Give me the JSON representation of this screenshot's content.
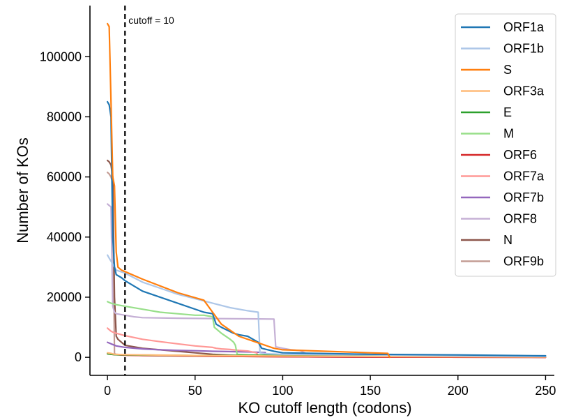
{
  "chart_data": {
    "type": "line",
    "title": "",
    "xlabel": "KO cutoff length (codons)",
    "ylabel": "Number of KOs",
    "xlim": [
      -10,
      255
    ],
    "ylim": [
      -6000,
      117000
    ],
    "xticks": [
      0,
      50,
      100,
      150,
      200,
      250
    ],
    "yticks": [
      0,
      20000,
      40000,
      60000,
      80000,
      100000
    ],
    "grid": false,
    "legend": "top-right",
    "cutoff": {
      "x": 10,
      "label": "cutoff = 10",
      "color": "#000000"
    },
    "series": [
      {
        "name": "ORF1a",
        "color": "#1f77b4",
        "x": [
          0,
          1,
          2,
          3,
          4,
          5,
          8,
          10,
          20,
          40,
          55,
          60,
          62,
          65,
          72,
          75,
          80,
          86,
          88,
          95,
          100,
          150,
          200,
          250
        ],
        "y": [
          85000,
          84000,
          80000,
          40000,
          30000,
          27500,
          26500,
          25500,
          22000,
          18000,
          15000,
          14500,
          11000,
          10000,
          8000,
          7500,
          7000,
          5000,
          3000,
          2000,
          1500,
          1000,
          800,
          500
        ]
      },
      {
        "name": "ORF1b",
        "color": "#aec7e8",
        "x": [
          0,
          1,
          2,
          3,
          4,
          5,
          10,
          20,
          30,
          40,
          50,
          60,
          70,
          80,
          86,
          87,
          90,
          100,
          150,
          200,
          250
        ],
        "y": [
          34000,
          33000,
          32000,
          31000,
          30000,
          29000,
          28000,
          25000,
          23000,
          21000,
          19500,
          18000,
          16500,
          15500,
          15000,
          1500,
          1200,
          1000,
          800,
          500,
          300
        ]
      },
      {
        "name": "S",
        "color": "#ff7f0e",
        "x": [
          0,
          1,
          2,
          3,
          4,
          5,
          6,
          8,
          10,
          20,
          40,
          55,
          60,
          65,
          75,
          85,
          95,
          100,
          150,
          160,
          161
        ],
        "y": [
          111000,
          110000,
          85000,
          60000,
          57000,
          35000,
          30000,
          29000,
          28500,
          26000,
          21500,
          19000,
          15000,
          11000,
          7000,
          5000,
          3000,
          2500,
          1500,
          1300,
          0
        ]
      },
      {
        "name": "ORF3a",
        "color": "#ffbb78",
        "x": [
          0,
          2,
          4,
          10,
          50,
          100,
          150,
          200,
          250
        ],
        "y": [
          1500,
          1300,
          1000,
          900,
          600,
          400,
          300,
          200,
          100
        ]
      },
      {
        "name": "E",
        "color": "#2ca02c",
        "x": [
          0,
          2,
          4,
          10,
          50,
          100,
          130,
          150,
          200,
          250
        ],
        "y": [
          1200,
          1000,
          900,
          800,
          600,
          700,
          800,
          700,
          500,
          300
        ]
      },
      {
        "name": "M",
        "color": "#98df8a",
        "x": [
          0,
          2,
          5,
          10,
          20,
          30,
          40,
          50,
          55,
          60,
          61,
          63,
          65,
          70,
          72,
          73,
          74,
          80,
          100,
          150,
          250
        ],
        "y": [
          18500,
          18000,
          17500,
          17000,
          16000,
          15000,
          14500,
          14000,
          14000,
          13500,
          10000,
          9000,
          8000,
          6000,
          5000,
          4000,
          1000,
          800,
          600,
          400,
          200
        ]
      },
      {
        "name": "ORF6",
        "color": "#d62728",
        "x": [
          0,
          2,
          4,
          10,
          50,
          100,
          150,
          250
        ],
        "y": [
          1200,
          1000,
          900,
          700,
          400,
          200,
          100,
          0
        ]
      },
      {
        "name": "ORF7a",
        "color": "#ff9896",
        "x": [
          0,
          1,
          2,
          3,
          5,
          10,
          20,
          30,
          40,
          50,
          60,
          62,
          65,
          70,
          75,
          80,
          85,
          86,
          90,
          100,
          150,
          250
        ],
        "y": [
          9700,
          9200,
          8700,
          8400,
          8000,
          7200,
          6000,
          5200,
          4500,
          3800,
          3300,
          3000,
          2800,
          2600,
          2300,
          2100,
          1500,
          600,
          300,
          200,
          100,
          0
        ]
      },
      {
        "name": "ORF7b",
        "color": "#9467bd",
        "x": [
          0,
          2,
          5,
          10,
          20,
          30,
          40,
          50,
          60,
          80,
          90,
          91,
          100,
          150,
          250
        ],
        "y": [
          5000,
          4500,
          3800,
          3300,
          2800,
          2500,
          2300,
          2200,
          2000,
          1800,
          1600,
          400,
          200,
          100,
          0
        ]
      },
      {
        "name": "ORF8",
        "color": "#c5b0d5",
        "x": [
          0,
          1,
          2,
          3,
          4,
          5,
          10,
          15,
          20,
          40,
          60,
          80,
          95,
          96,
          100,
          105,
          110,
          115,
          150,
          250
        ],
        "y": [
          51000,
          50500,
          50000,
          17000,
          15000,
          14500,
          14000,
          13500,
          13200,
          13000,
          12900,
          12800,
          12700,
          3500,
          3000,
          2500,
          2200,
          800,
          500,
          200
        ]
      },
      {
        "name": "N",
        "color": "#8c564b",
        "x": [
          0,
          1,
          2,
          3,
          4,
          5,
          6,
          8,
          10,
          15,
          20,
          30,
          40,
          50,
          60,
          70,
          80,
          100,
          150,
          250
        ],
        "y": [
          65500,
          65000,
          64000,
          60000,
          20000,
          7000,
          6000,
          5000,
          4000,
          3500,
          3000,
          2500,
          2000,
          1500,
          1000,
          700,
          500,
          300,
          100,
          0
        ]
      },
      {
        "name": "ORF9b",
        "color": "#c49c94",
        "x": [
          0,
          1,
          2,
          3,
          4,
          5,
          10,
          20,
          50,
          100,
          150,
          250
        ],
        "y": [
          61500,
          61000,
          60000,
          58000,
          1200,
          1000,
          800,
          600,
          400,
          200,
          100,
          0
        ]
      }
    ]
  }
}
